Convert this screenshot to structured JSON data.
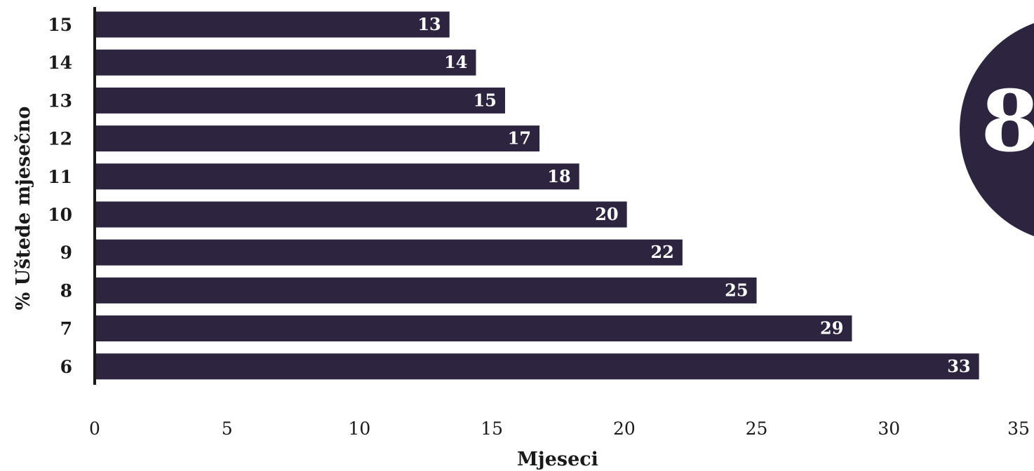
{
  "chart_data": {
    "type": "bar",
    "orientation": "horizontal",
    "categories": [
      "15",
      "14",
      "13",
      "12",
      "11",
      "10",
      "9",
      "8",
      "7",
      "6"
    ],
    "values": [
      13,
      14,
      15,
      17,
      18,
      20,
      22,
      25,
      29,
      33
    ],
    "bar_lengths": [
      13.4,
      14.4,
      15.5,
      16.8,
      18.3,
      20.1,
      22.2,
      25.0,
      28.6,
      33.4
    ],
    "xlabel": "Mjeseci",
    "ylabel": "% Uštede mjesečno",
    "xlim": [
      0,
      35
    ],
    "xticks": [
      0,
      5,
      10,
      15,
      20,
      25,
      30,
      35
    ],
    "grid": false,
    "bar_color": "#2d2440",
    "badge": {
      "text": "8",
      "color": "#2d2440"
    }
  }
}
